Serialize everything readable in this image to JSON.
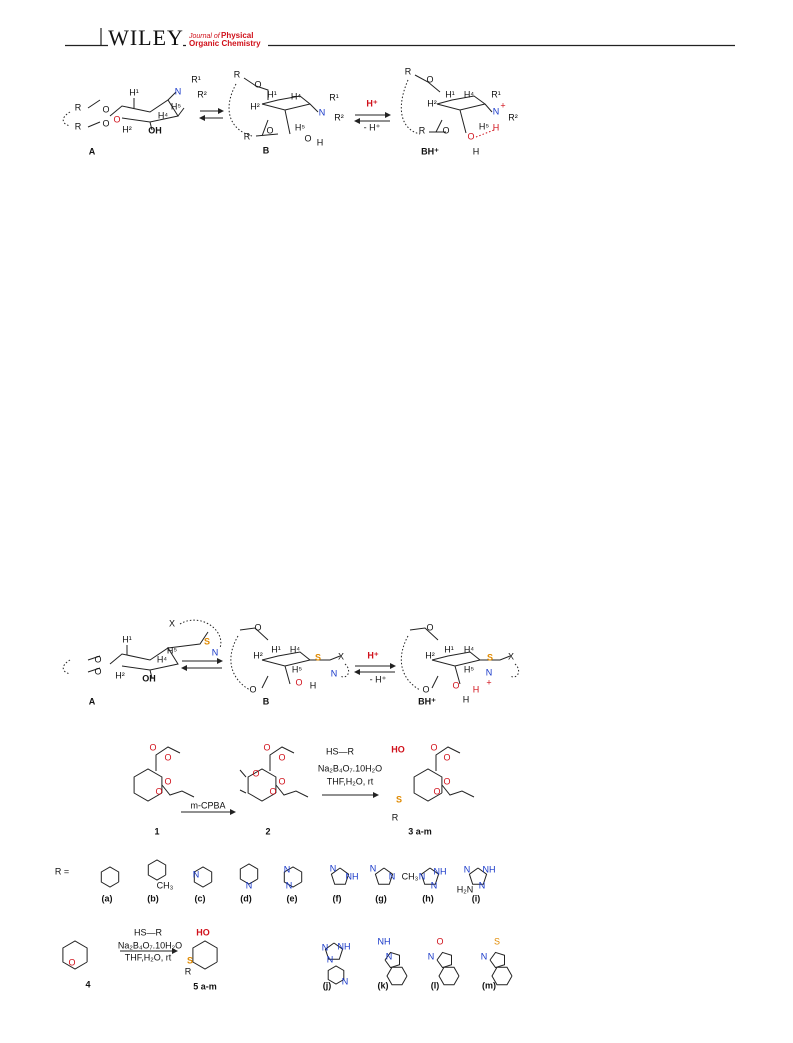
{
  "header": {
    "brand": "WILEY",
    "journal_of": "Journal of",
    "journal_title_1": "Physical",
    "journal_title_2": "Organic Chemistry"
  },
  "scheme_1": {
    "compound_labels": [
      "A",
      "B",
      "BH⁺"
    ],
    "equilibrium": [
      "H⁺",
      "- H⁺"
    ],
    "a_atoms": [
      "R",
      "R",
      "O",
      "O",
      "O",
      "H¹",
      "N",
      "R¹",
      "R²",
      "H⁵",
      "H⁴",
      "H²",
      "OH"
    ],
    "b_atoms": [
      "R",
      "O",
      "H¹",
      "H⁴",
      "H²",
      "N",
      "R¹",
      "R²",
      "H⁵",
      "O",
      "R",
      "O",
      "H"
    ],
    "bh_atoms": [
      "R",
      "O",
      "H¹",
      "H⁴",
      "H²",
      "N",
      "+",
      "R¹",
      "R²",
      "H⁵",
      "H",
      "O",
      "H",
      "R",
      "O"
    ]
  },
  "scheme_2": {
    "compound_labels": [
      "A",
      "B",
      "BH⁺"
    ],
    "equilibrium": [
      "H⁺",
      "- H⁺"
    ],
    "a_atoms": [
      "X",
      "S",
      "N",
      "H¹",
      "H⁵",
      "H⁴",
      "H²",
      "OH",
      "O",
      "O"
    ],
    "b_atoms": [
      "O",
      "H²",
      "H¹",
      "H⁴",
      "S",
      "X",
      "N",
      "H⁵",
      "O",
      "O",
      "H"
    ],
    "bh_atoms": [
      "O",
      "H²",
      "H¹",
      "H⁴",
      "S",
      "X",
      "N",
      "+",
      "H⁵",
      "O",
      "O",
      "H",
      "H"
    ]
  },
  "scheme_3": {
    "compounds": [
      "1",
      "2",
      "3 a-m",
      "4",
      "5 a-m"
    ],
    "oxidant": "m-CPBA",
    "reagents_a": [
      "HS—R",
      "Na₂B₄O₇.10H₂O",
      "THF,H₂O, rt"
    ],
    "reagents_b": [
      "HS—R",
      "Na₂B₄O₇.10H₂O",
      "THF,H₂O, rt"
    ],
    "compound_atoms": [
      "O",
      "O",
      "O",
      "O",
      "O",
      "O",
      "O",
      "O",
      "O",
      "HO",
      "S",
      "R",
      "O",
      "O",
      "O",
      "O",
      "O",
      "HO",
      "S",
      "R"
    ],
    "r_prefix": "R =",
    "r_group_labels": [
      "(a)",
      "(b)",
      "(c)",
      "(d)",
      "(e)",
      "(f)",
      "(g)",
      "(h)",
      "(i)",
      "(j)",
      "(k)",
      "(l)",
      "(m)"
    ],
    "r_group_atoms": [
      "CH₃",
      "N",
      "N",
      "N",
      "N",
      "N",
      "NH",
      "N",
      "N",
      "CH₃",
      "N",
      "N",
      "NH",
      "N",
      "NH",
      "N",
      "H₂N",
      "N",
      "N",
      "NH",
      "N",
      "NH",
      "N",
      "O",
      "N",
      "S",
      "N"
    ]
  }
}
